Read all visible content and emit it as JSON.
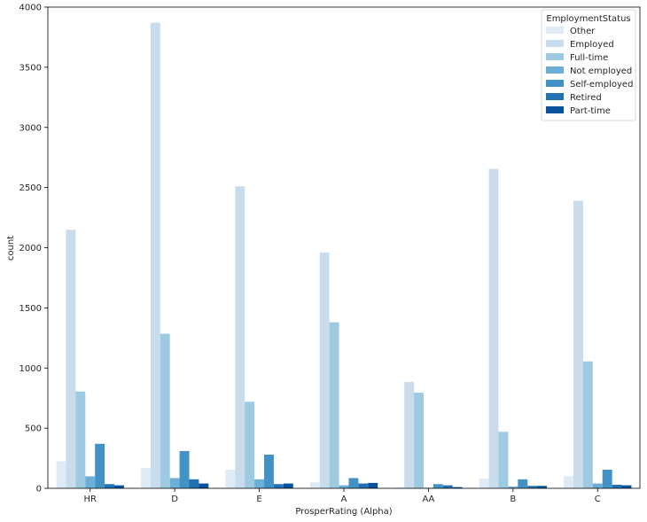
{
  "chart_data": {
    "type": "bar",
    "xlabel": "ProsperRating (Alpha)",
    "ylabel": "count",
    "ylim": [
      0,
      4000
    ],
    "yticks": [
      0,
      500,
      1000,
      1500,
      2000,
      2500,
      3000,
      3500,
      4000
    ],
    "categories": [
      "HR",
      "D",
      "E",
      "A",
      "AA",
      "B",
      "C"
    ],
    "legend": {
      "title": "EmploymentStatus",
      "placement": "top-right"
    },
    "grid": false,
    "series": [
      {
        "name": "Other",
        "color": "#deebf7",
        "values": [
          225,
          170,
          155,
          50,
          10,
          80,
          100
        ]
      },
      {
        "name": "Employed",
        "color": "#c8dcec",
        "values": [
          2150,
          3870,
          2510,
          1960,
          885,
          2655,
          2390
        ]
      },
      {
        "name": "Full-time",
        "color": "#9ecae1",
        "values": [
          805,
          1285,
          720,
          1380,
          795,
          470,
          1055
        ]
      },
      {
        "name": "Not employed",
        "color": "#6baed6",
        "values": [
          100,
          85,
          75,
          25,
          5,
          15,
          40
        ]
      },
      {
        "name": "Self-employed",
        "color": "#4292c6",
        "values": [
          370,
          310,
          280,
          85,
          35,
          75,
          155
        ]
      },
      {
        "name": "Retired",
        "color": "#2171b5",
        "values": [
          35,
          75,
          35,
          40,
          25,
          20,
          30
        ]
      },
      {
        "name": "Part-time",
        "color": "#08519c",
        "values": [
          25,
          40,
          40,
          45,
          10,
          20,
          25
        ]
      }
    ]
  }
}
